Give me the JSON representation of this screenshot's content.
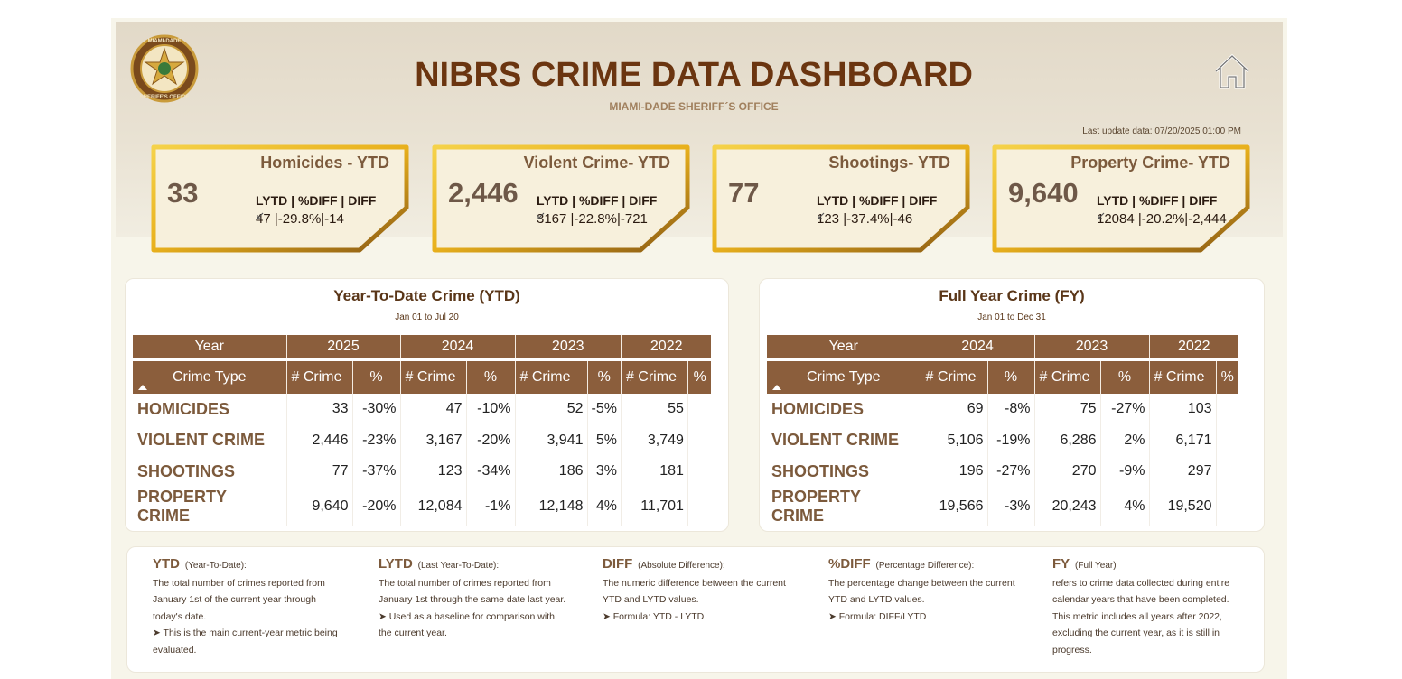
{
  "header": {
    "title": "NIBRS CRIME DATA DASHBOARD",
    "subtitle": "MIAMI-DADE SHERIFF´S OFFICE",
    "last_update": "Last update data: 07/20/2025 01:00 PM",
    "logo_top": "MIAMI-DADE",
    "logo_bottom": "SHERIFF'S OFFICE"
  },
  "kpis": [
    {
      "title": "Homicides - YTD",
      "value": "33",
      "compare_header": "LYTD | %DIFF | DIFF",
      "compare": "47 |-29.8%|-14"
    },
    {
      "title": "Violent Crime- YTD",
      "value": "2,446",
      "compare_header": "LYTD | %DIFF | DIFF",
      "compare": "3167 |-22.8%|-721"
    },
    {
      "title": "Shootings- YTD",
      "value": "77",
      "compare_header": "LYTD | %DIFF | DIFF",
      "compare": "123 |-37.4%|-46"
    },
    {
      "title": "Property Crime- YTD",
      "value": "9,640",
      "compare_header": "LYTD | %DIFF | DIFF",
      "compare": "12084 |-20.2%|-2,444"
    }
  ],
  "tables": [
    {
      "title": "Year-To-Date Crime (YTD)",
      "subtitle": "Jan 01 to Jul 20",
      "year_header": "Year",
      "type_header": "Crime Type",
      "count_header": "# Crime",
      "pct_header": "%",
      "years": [
        "2025",
        "2024",
        "2023",
        "2022"
      ],
      "rows": [
        [
          "HOMICIDES",
          "33",
          "-30%",
          "47",
          "-10%",
          "52",
          "-5%",
          "55"
        ],
        [
          "VIOLENT CRIME",
          "2,446",
          "-23%",
          "3,167",
          "-20%",
          "3,941",
          "5%",
          "3,749"
        ],
        [
          "SHOOTINGS",
          "77",
          "-37%",
          "123",
          "-34%",
          "186",
          "3%",
          "181"
        ],
        [
          "PROPERTY CRIME",
          "9,640",
          "-20%",
          "12,084",
          "-1%",
          "12,148",
          "4%",
          "11,701"
        ]
      ]
    },
    {
      "title": "Full Year Crime (FY)",
      "subtitle": "Jan 01 to Dec 31",
      "year_header": "Year",
      "type_header": "Crime Type",
      "count_header": "# Crime",
      "pct_header": "%",
      "years": [
        "2024",
        "2023",
        "2022"
      ],
      "rows": [
        [
          "HOMICIDES",
          "69",
          "-8%",
          "75",
          "-27%",
          "103"
        ],
        [
          "VIOLENT CRIME",
          "5,106",
          "-19%",
          "6,286",
          "2%",
          "6,171"
        ],
        [
          "SHOOTINGS",
          "196",
          "-27%",
          "270",
          "-9%",
          "297"
        ],
        [
          "PROPERTY CRIME",
          "19,566",
          "-3%",
          "20,243",
          "4%",
          "19,520"
        ]
      ]
    }
  ],
  "notes": [
    {
      "term": "YTD",
      "qualifier": "(Year-To-Date):",
      "lines": [
        "The total number of crimes reported from January 1st of the current year through today's date.",
        "➤ This is the main current-year metric being evaluated."
      ]
    },
    {
      "term": "LYTD",
      "qualifier": "(Last Year-To-Date):",
      "lines": [
        "The total number of crimes reported from January 1st through the same date last year.",
        "➤ Used as a baseline for comparison with the current year."
      ]
    },
    {
      "term": "DIFF",
      "qualifier": "(Absolute Difference):",
      "lines": [
        "The numeric difference between the current YTD and LYTD values.",
        "➤ Formula: YTD - LYTD"
      ]
    },
    {
      "term": "%DIFF",
      "qualifier": "(Percentage Difference):",
      "lines": [
        "The percentage change between the current YTD and LYTD values.",
        "➤ Formula: DIFF/LYTD"
      ]
    },
    {
      "term": "FY",
      "qualifier": "(Full Year)",
      "lines": [
        "refers to crime data collected during entire calendar years that have been completed. This metric includes all years after 2022, excluding the current year, as it is still in progress."
      ]
    }
  ]
}
